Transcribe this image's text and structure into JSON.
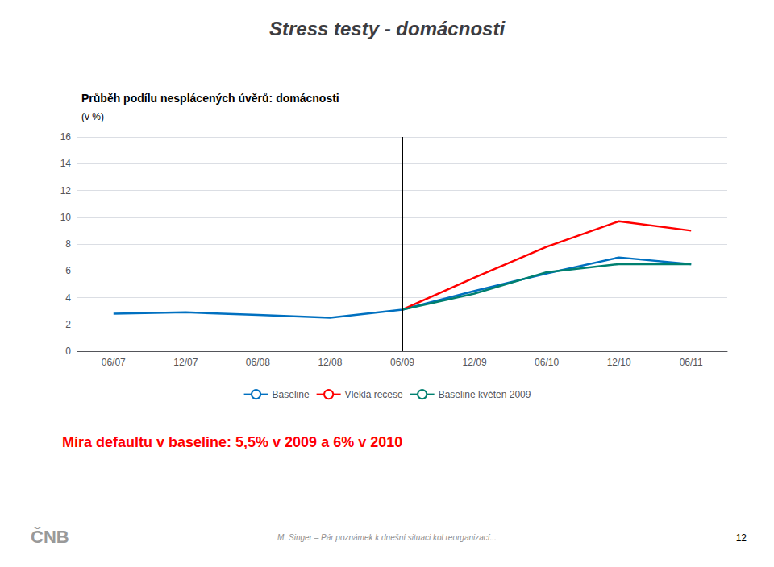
{
  "chart_data": {
    "type": "line",
    "title": "Stress testy - domácnosti",
    "subtitle": "Průběh podílu nesplácených úvěrů: domácnosti",
    "y_label": "(v %)",
    "categories": [
      "06/07",
      "12/07",
      "06/08",
      "12/08",
      "06/09",
      "12/09",
      "06/10",
      "12/10",
      "06/11"
    ],
    "series": [
      {
        "name": "Baseline",
        "color": "#0070C0",
        "values": [
          2.8,
          2.9,
          2.7,
          2.5,
          3.1,
          4.5,
          5.8,
          7.0,
          6.5
        ]
      },
      {
        "name": "Vleklá recese",
        "color": "#FF0000",
        "values": [
          null,
          null,
          null,
          null,
          3.1,
          5.5,
          7.8,
          9.7,
          9.0
        ]
      },
      {
        "name": "Baseline květen 2009",
        "color": "#008070",
        "values": [
          null,
          null,
          null,
          null,
          3.1,
          4.3,
          5.9,
          6.5,
          6.5
        ]
      }
    ],
    "vertical_line": "06/09",
    "ylim": [
      0,
      16
    ],
    "yticks": [
      0,
      2,
      4,
      6,
      8,
      10,
      12,
      14,
      16
    ],
    "grid": true,
    "legend": "bottom",
    "note": {
      "text": "Míra defaultu v baseline: 5,5% v 2009 a 6% v 2010",
      "color": "#FF0000"
    },
    "footer": "M. Singer – Pár poznámek k dnešní situaci kol reorganizací...",
    "page_number": "12",
    "logo_text": "ČNB"
  }
}
